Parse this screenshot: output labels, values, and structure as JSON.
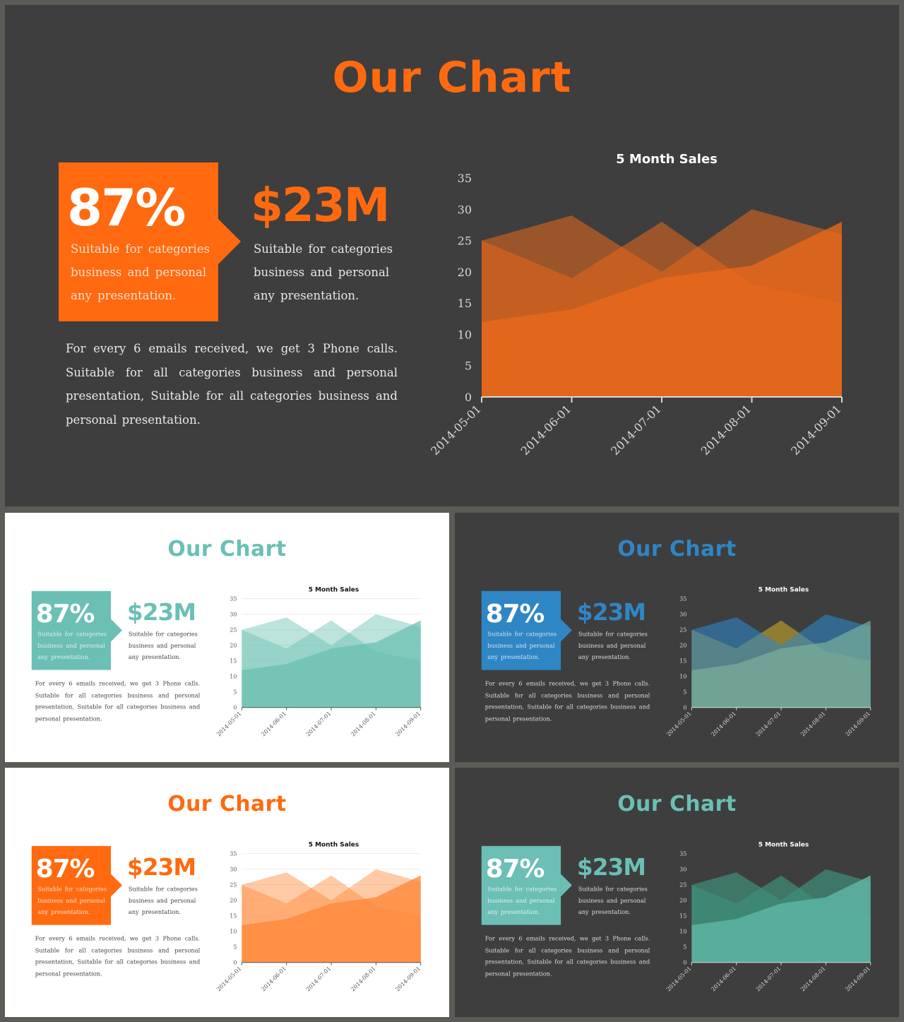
{
  "slides": [
    {
      "title": "Our Chart",
      "percent": "87%",
      "percent_desc": "Suitable for categories business and personal any presentation.",
      "amount": "$23M",
      "amount_desc": "Suitable for categories business and personal any presentation.",
      "paragraph": "For every 6 emails received, we get 3 Phone calls. Suitable for all categories business and personal presentation, Suitable for all categories business and personal presentation.",
      "theme": {
        "bg": "#3e3e3e",
        "title": "#ff6a10",
        "accent": "#ff6a10",
        "money": "#ff6a10",
        "text": "#e8e8e8",
        "axis": "#d8d8d8",
        "chart_title": "#ffffff",
        "series_colors": [
          "#e8681a",
          "#e8681a",
          "#e8681a"
        ],
        "series_opacity": [
          0.55,
          0.55,
          0.8
        ]
      }
    },
    {
      "title": "Our Chart",
      "percent": "87%",
      "percent_desc": "Suitable for categories business and personal any presentation.",
      "amount": "$23M",
      "amount_desc": "Suitable for categories business and personal any presentation.",
      "paragraph": "For every 6 emails received, we get 3 Phone calls. Suitable for all categories business and personal presentation, Suitable for all categories business and personal presentation.",
      "theme": {
        "bg": "#ffffff",
        "title": "#6bbfb5",
        "accent": "#6bbfb5",
        "money": "#6bbfb5",
        "text": "#444444",
        "axis": "#555555",
        "chart_title": "#111111",
        "series_colors": [
          "#6bc0b2",
          "#6bc0b2",
          "#6bc0b2"
        ],
        "series_opacity": [
          0.45,
          0.45,
          0.75
        ]
      }
    },
    {
      "title": "Our Chart",
      "percent": "87%",
      "percent_desc": "Suitable for categories business and personal any presentation.",
      "amount": "$23M",
      "amount_desc": "Suitable for categories business and personal any presentation.",
      "paragraph": "For every 6 emails received, we get 3 Phone calls. Suitable for all categories business and personal presentation, Suitable for all categories business and personal presentation.",
      "theme": {
        "bg": "#3e3e3e",
        "title": "#2f86c5",
        "accent": "#2f86c5",
        "money": "#2f86c5",
        "text": "#dddddd",
        "axis": "#d8d8d8",
        "chart_title": "#ffffff",
        "series_colors": [
          "#c8a92a",
          "#2f86c5",
          "#7fb59c"
        ],
        "series_opacity": [
          0.6,
          0.6,
          0.65
        ]
      }
    },
    {
      "title": "Our Chart",
      "percent": "87%",
      "percent_desc": "Suitable for categories business and personal any presentation.",
      "amount": "$23M",
      "amount_desc": "Suitable for categories business and personal any presentation.",
      "paragraph": "For every 6 emails received, we get 3 Phone calls. Suitable for all categories business and personal presentation, Suitable for all categories business and personal presentation.",
      "theme": {
        "bg": "#ffffff",
        "title": "#ff6a10",
        "accent": "#ff6a10",
        "money": "#ff6a10",
        "text": "#444444",
        "axis": "#555555",
        "chart_title": "#111111",
        "series_colors": [
          "#ff8a3a",
          "#ff8a3a",
          "#ff8a3a"
        ],
        "series_opacity": [
          0.45,
          0.45,
          0.8
        ]
      }
    },
    {
      "title": "Our Chart",
      "percent": "87%",
      "percent_desc": "Suitable for categories business and personal any presentation.",
      "amount": "$23M",
      "amount_desc": "Suitable for categories business and personal any presentation.",
      "paragraph": "For every 6 emails received, we get 3 Phone calls. Suitable for all categories business and personal presentation, Suitable for all categories business and personal presentation.",
      "theme": {
        "bg": "#3e3e3e",
        "title": "#6bbfb5",
        "accent": "#6bbfb5",
        "money": "#6bbfb5",
        "text": "#dddddd",
        "axis": "#d8d8d8",
        "chart_title": "#ffffff",
        "series_colors": [
          "#3f8f7a",
          "#3f8f7a",
          "#5fb5a5"
        ],
        "series_opacity": [
          0.7,
          0.7,
          0.85
        ]
      }
    }
  ],
  "chart_data": {
    "type": "area",
    "title": "5 Month Sales",
    "x": [
      "2014-05-01",
      "2014-06-01",
      "2014-07-01",
      "2014-08-01",
      "2014-09-01"
    ],
    "series": [
      {
        "values": [
          25,
          19,
          28,
          18,
          15
        ]
      },
      {
        "values": [
          25,
          29,
          20,
          30,
          26
        ]
      },
      {
        "values": [
          12,
          14,
          19,
          21,
          28
        ]
      }
    ],
    "ylim": [
      0,
      35
    ],
    "yticks": [
      0,
      5,
      10,
      15,
      20,
      25,
      30,
      35
    ],
    "xlabel": "",
    "ylabel": "",
    "legend": "none"
  }
}
